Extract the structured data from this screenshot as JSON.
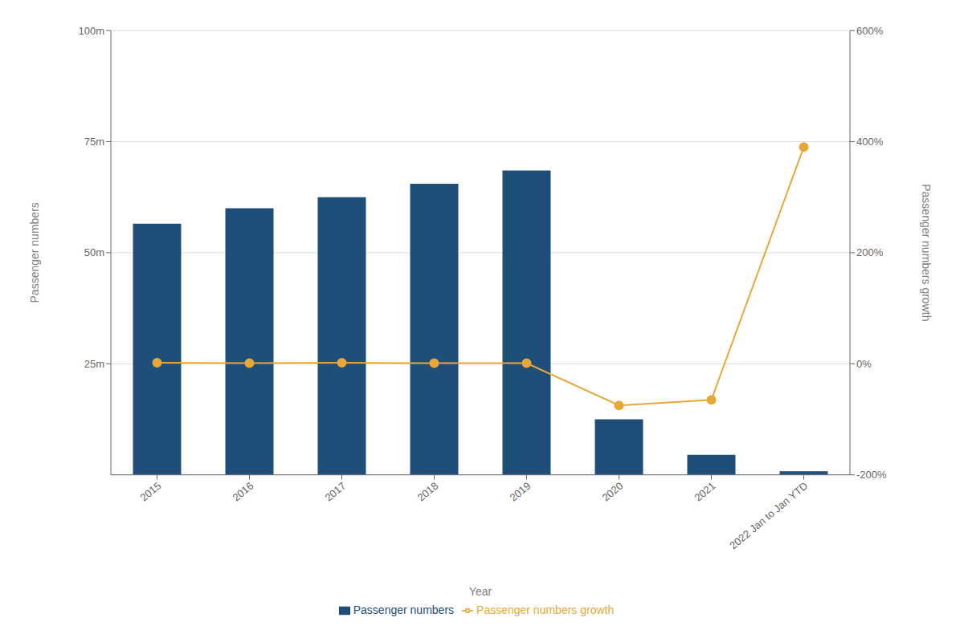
{
  "chart_data": {
    "type": "bar",
    "categories": [
      "2015",
      "2016",
      "2017",
      "2018",
      "2019",
      "2020",
      "2021",
      "2022 Jan to Jan YTD"
    ],
    "series": [
      {
        "name": "Passenger numbers",
        "type": "bar",
        "color": "#1F4E79",
        "values": [
          56.5,
          60.0,
          62.5,
          65.5,
          68.5,
          12.5,
          4.5,
          0.8
        ]
      },
      {
        "name": "Passenger numbers growth",
        "type": "line",
        "color": "#E8A838",
        "marker": "circle",
        "axis": "y2",
        "values": [
          2,
          1,
          2,
          1,
          1,
          -75,
          -65,
          390
        ]
      }
    ],
    "xlabel": "Year",
    "ylabel": "Passenger numbers",
    "y2label": "Passenger numbers growth",
    "ylim": [
      0,
      100
    ],
    "yticks": [
      {
        "value": 25,
        "label": "25m"
      },
      {
        "value": 50,
        "label": "50m"
      },
      {
        "value": 75,
        "label": "75m"
      },
      {
        "value": 100,
        "label": "100m"
      }
    ],
    "y2lim": [
      -200,
      600
    ],
    "y2ticks": [
      {
        "value": -200,
        "label": "-200%"
      },
      {
        "value": 0,
        "label": "0%"
      },
      {
        "value": 200,
        "label": "200%"
      },
      {
        "value": 400,
        "label": "400%"
      },
      {
        "value": 600,
        "label": "600%"
      }
    ],
    "grid": true,
    "legend": "bottom"
  }
}
